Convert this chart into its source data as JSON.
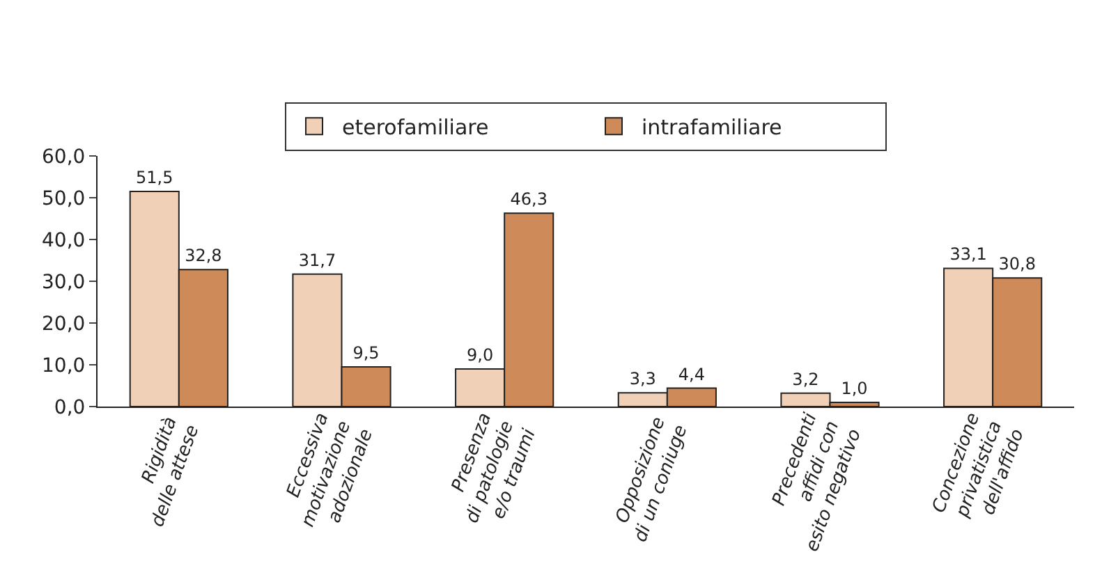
{
  "chart_data": {
    "type": "bar",
    "categories": [
      "Rigidità\ndelle attese",
      "Eccessiva\nmotivazione\nadozionale",
      "Presenza\ndi patologie\ne/o traumi",
      "Opposizione\ndi un coniuge",
      "Precedenti\naffidi con\nesito negativo",
      "Concezione\nprivatistica\ndell'affido"
    ],
    "series": [
      {
        "name": "eterofamiliare",
        "color": "#f0d0b6",
        "values": [
          51.5,
          31.7,
          9.0,
          3.3,
          3.2,
          33.1
        ],
        "value_labels": [
          "51,5",
          "31,7",
          "9,0",
          "3,3",
          "3,2",
          "33,1"
        ]
      },
      {
        "name": "intrafamiliare",
        "color": "#cf8a5a",
        "values": [
          32.8,
          9.5,
          46.3,
          4.4,
          1.0,
          30.8
        ],
        "value_labels": [
          "32,8",
          "9,5",
          "46,3",
          "4,4",
          "1,0",
          "30,8"
        ]
      }
    ],
    "ylim": [
      0,
      60
    ],
    "yticks": [
      {
        "value": 0,
        "label": "0,0"
      },
      {
        "value": 10,
        "label": "10,0"
      },
      {
        "value": 20,
        "label": "20,0"
      },
      {
        "value": 30,
        "label": "30,0"
      },
      {
        "value": 40,
        "label": "40,0"
      },
      {
        "value": 50,
        "label": "50,0"
      },
      {
        "value": 60,
        "label": "60,0"
      }
    ],
    "legend": "top"
  }
}
